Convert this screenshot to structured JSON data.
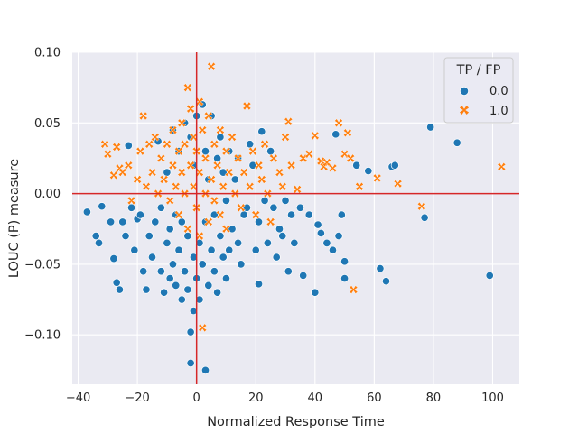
{
  "chart_data": {
    "type": "scatter",
    "title": "",
    "xlabel": "Normalized Response Time",
    "ylabel": "LOUC (P) measure",
    "xlim": [
      -42,
      109
    ],
    "ylim": [
      -0.135,
      0.1
    ],
    "x_ticks": [
      -40,
      -20,
      0,
      20,
      40,
      60,
      80,
      100
    ],
    "x_tick_labels": [
      "−40",
      "−20",
      "0",
      "20",
      "40",
      "60",
      "80",
      "100"
    ],
    "y_ticks": [
      -0.1,
      -0.05,
      0.0,
      0.05,
      0.1
    ],
    "y_tick_labels": [
      "−0.10",
      "−0.05",
      "0.00",
      "0.05",
      "0.10"
    ],
    "grid": true,
    "reference_lines": {
      "x": 0,
      "y": 0,
      "color": "#d62728"
    },
    "legend": {
      "title": "TP / FP",
      "placement": "top-right",
      "entries": [
        {
          "label": "0.0",
          "marker": "circle",
          "color": "#1f77b4"
        },
        {
          "label": "1.0",
          "marker": "x",
          "color": "#ff7f0e"
        }
      ]
    },
    "series": [
      {
        "name": "0.0",
        "marker": "circle",
        "color": "#1f77b4",
        "points": [
          [
            -37,
            -0.013
          ],
          [
            -34,
            -0.03
          ],
          [
            -33,
            -0.035
          ],
          [
            -32,
            -0.009
          ],
          [
            -29,
            -0.02
          ],
          [
            -28,
            -0.046
          ],
          [
            -27,
            -0.063
          ],
          [
            -26,
            -0.068
          ],
          [
            -25,
            -0.02
          ],
          [
            -24,
            -0.03
          ],
          [
            -23,
            0.034
          ],
          [
            -22,
            -0.01
          ],
          [
            -21,
            -0.04
          ],
          [
            -20,
            -0.018
          ],
          [
            -19,
            -0.015
          ],
          [
            -18,
            -0.055
          ],
          [
            -17,
            -0.068
          ],
          [
            -16,
            -0.03
          ],
          [
            -15,
            -0.045
          ],
          [
            -14,
            -0.02
          ],
          [
            -13,
            0.037
          ],
          [
            -12,
            -0.055
          ],
          [
            -12,
            -0.01
          ],
          [
            -11,
            -0.07
          ],
          [
            -10,
            -0.035
          ],
          [
            -10,
            0.015
          ],
          [
            -9,
            -0.06
          ],
          [
            -9,
            -0.025
          ],
          [
            -8,
            0.045
          ],
          [
            -8,
            -0.05
          ],
          [
            -7,
            -0.015
          ],
          [
            -7,
            -0.065
          ],
          [
            -6,
            0.03
          ],
          [
            -6,
            -0.04
          ],
          [
            -5,
            -0.075
          ],
          [
            -5,
            -0.02
          ],
          [
            -4,
            0.05
          ],
          [
            -4,
            -0.055
          ],
          [
            -3,
            -0.03
          ],
          [
            -3,
            -0.068
          ],
          [
            -2,
            0.04
          ],
          [
            -2,
            -0.098
          ],
          [
            -2,
            -0.12
          ],
          [
            -1,
            -0.083
          ],
          [
            -1,
            -0.045
          ],
          [
            -1,
            0.02
          ],
          [
            0,
            -0.06
          ],
          [
            0,
            0.055
          ],
          [
            1,
            -0.075
          ],
          [
            1,
            -0.035
          ],
          [
            2,
            0.063
          ],
          [
            2,
            -0.05
          ],
          [
            3,
            -0.125
          ],
          [
            3,
            0.03
          ],
          [
            3,
            -0.02
          ],
          [
            4,
            -0.065
          ],
          [
            4,
            0.01
          ],
          [
            5,
            -0.04
          ],
          [
            5,
            0.055
          ],
          [
            6,
            -0.055
          ],
          [
            6,
            -0.015
          ],
          [
            7,
            0.025
          ],
          [
            7,
            -0.07
          ],
          [
            8,
            -0.03
          ],
          [
            8,
            0.04
          ],
          [
            9,
            -0.045
          ],
          [
            9,
            0.015
          ],
          [
            10,
            -0.06
          ],
          [
            10,
            -0.005
          ],
          [
            11,
            0.03
          ],
          [
            11,
            -0.04
          ],
          [
            12,
            -0.025
          ],
          [
            13,
            0.01
          ],
          [
            14,
            -0.035
          ],
          [
            14,
            0.025
          ],
          [
            15,
            -0.05
          ],
          [
            16,
            -0.015
          ],
          [
            17,
            -0.01
          ],
          [
            18,
            0.035
          ],
          [
            19,
            0.02
          ],
          [
            20,
            -0.04
          ],
          [
            21,
            -0.02
          ],
          [
            21,
            -0.064
          ],
          [
            22,
            0.044
          ],
          [
            23,
            -0.005
          ],
          [
            24,
            -0.035
          ],
          [
            25,
            0.03
          ],
          [
            26,
            -0.01
          ],
          [
            27,
            -0.045
          ],
          [
            28,
            -0.025
          ],
          [
            29,
            -0.03
          ],
          [
            30,
            -0.005
          ],
          [
            31,
            -0.055
          ],
          [
            32,
            -0.015
          ],
          [
            33,
            -0.035
          ],
          [
            35,
            -0.01
          ],
          [
            36,
            -0.058
          ],
          [
            38,
            -0.015
          ],
          [
            40,
            -0.07
          ],
          [
            41,
            -0.022
          ],
          [
            42,
            -0.028
          ],
          [
            44,
            -0.035
          ],
          [
            46,
            -0.04
          ],
          [
            47,
            0.042
          ],
          [
            48,
            -0.03
          ],
          [
            49,
            -0.015
          ],
          [
            50,
            -0.048
          ],
          [
            50,
            -0.06
          ],
          [
            54,
            0.02
          ],
          [
            58,
            0.016
          ],
          [
            62,
            -0.053
          ],
          [
            64,
            -0.062
          ],
          [
            66,
            0.019
          ],
          [
            67,
            0.02
          ],
          [
            77,
            -0.017
          ],
          [
            79,
            0.047
          ],
          [
            88,
            0.036
          ],
          [
            99,
            -0.058
          ]
        ]
      },
      {
        "name": "1.0",
        "marker": "x",
        "color": "#ff7f0e",
        "points": [
          [
            -31,
            0.035
          ],
          [
            -30,
            0.028
          ],
          [
            -28,
            0.013
          ],
          [
            -27,
            0.033
          ],
          [
            -26,
            0.018
          ],
          [
            -25,
            0.015
          ],
          [
            -23,
            0.02
          ],
          [
            -22,
            -0.005
          ],
          [
            -20,
            0.01
          ],
          [
            -19,
            0.03
          ],
          [
            -18,
            0.055
          ],
          [
            -17,
            0.005
          ],
          [
            -16,
            0.035
          ],
          [
            -15,
            0.015
          ],
          [
            -14,
            0.04
          ],
          [
            -13,
            0.0
          ],
          [
            -12,
            0.025
          ],
          [
            -11,
            0.01
          ],
          [
            -10,
            0.035
          ],
          [
            -9,
            -0.005
          ],
          [
            -8,
            0.02
          ],
          [
            -8,
            0.045
          ],
          [
            -7,
            0.005
          ],
          [
            -6,
            0.03
          ],
          [
            -6,
            -0.015
          ],
          [
            -5,
            0.05
          ],
          [
            -5,
            0.015
          ],
          [
            -4,
            0.0
          ],
          [
            -4,
            0.035
          ],
          [
            -3,
            0.075
          ],
          [
            -3,
            -0.025
          ],
          [
            -2,
            0.02
          ],
          [
            -2,
            0.06
          ],
          [
            -1,
            0.005
          ],
          [
            -1,
            0.04
          ],
          [
            0,
            -0.01
          ],
          [
            0,
            0.03
          ],
          [
            1,
            0.065
          ],
          [
            1,
            -0.03
          ],
          [
            1,
            0.015
          ],
          [
            2,
            -0.095
          ],
          [
            2,
            0.045
          ],
          [
            3,
            0.0
          ],
          [
            3,
            0.025
          ],
          [
            4,
            0.055
          ],
          [
            4,
            -0.02
          ],
          [
            5,
            0.01
          ],
          [
            5,
            0.09
          ],
          [
            6,
            0.035
          ],
          [
            6,
            -0.005
          ],
          [
            7,
            0.02
          ],
          [
            8,
            0.045
          ],
          [
            8,
            -0.015
          ],
          [
            9,
            0.005
          ],
          [
            10,
            0.03
          ],
          [
            10,
            -0.025
          ],
          [
            11,
            0.015
          ],
          [
            12,
            0.04
          ],
          [
            13,
            0.0
          ],
          [
            14,
            0.025
          ],
          [
            15,
            -0.01
          ],
          [
            16,
            0.015
          ],
          [
            17,
            0.062
          ],
          [
            18,
            0.005
          ],
          [
            19,
            0.03
          ],
          [
            20,
            -0.015
          ],
          [
            21,
            0.02
          ],
          [
            22,
            0.01
          ],
          [
            23,
            0.035
          ],
          [
            24,
            0.0
          ],
          [
            25,
            -0.02
          ],
          [
            26,
            0.025
          ],
          [
            28,
            0.015
          ],
          [
            29,
            0.005
          ],
          [
            30,
            0.04
          ],
          [
            31,
            0.051
          ],
          [
            32,
            0.02
          ],
          [
            34,
            0.003
          ],
          [
            36,
            0.025
          ],
          [
            38,
            0.028
          ],
          [
            40,
            0.041
          ],
          [
            42,
            0.023
          ],
          [
            43,
            0.019
          ],
          [
            44,
            0.022
          ],
          [
            46,
            0.018
          ],
          [
            48,
            0.05
          ],
          [
            50,
            0.028
          ],
          [
            51,
            0.043
          ],
          [
            52,
            0.025
          ],
          [
            53,
            -0.068
          ],
          [
            55,
            0.005
          ],
          [
            61,
            0.011
          ],
          [
            68,
            0.007
          ],
          [
            76,
            -0.009
          ],
          [
            103,
            0.019
          ]
        ]
      }
    ]
  }
}
